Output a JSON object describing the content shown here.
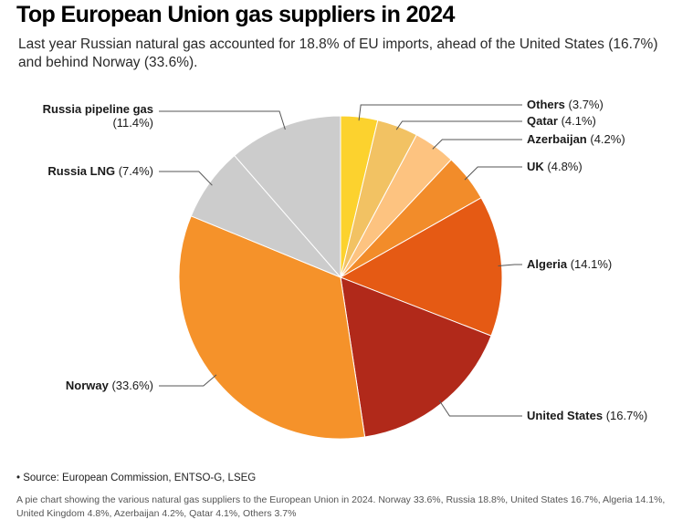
{
  "header": {
    "title": "Top European Union gas suppliers in 2024",
    "subtitle": "Last year Russian natural gas accounted for 18.8% of EU imports, ahead of the United States (16.7%) and behind Norway (33.6%)."
  },
  "footer": {
    "source": "• Source: European Commission, ENTSO-G, LSEG",
    "description": "A pie chart showing the various natural gas suppliers to the European Union in 2024. Norway 33.6%, Russia 18.8%, United States 16.7%, Algeria 14.1%, United Kingdom 4.8%, Azerbaijan 4.2%, Qatar 4.1%, Others 3.7%"
  },
  "chart_data": {
    "type": "pie",
    "start_angle": "12 o'clock",
    "direction": "clockwise",
    "slices": [
      {
        "name": "Others",
        "value": 3.7,
        "label": "(3.7%)",
        "color": "#fcd22e",
        "label_side": "right"
      },
      {
        "name": "Qatar",
        "value": 4.1,
        "label": "(4.1%)",
        "color": "#f2c263",
        "label_side": "right"
      },
      {
        "name": "Azerbaijan",
        "value": 4.2,
        "label": "(4.2%)",
        "color": "#fdc380",
        "label_side": "right"
      },
      {
        "name": "UK",
        "value": 4.8,
        "label": "(4.8%)",
        "color": "#f28c2a",
        "label_side": "right"
      },
      {
        "name": "Algeria",
        "value": 14.1,
        "label": "(14.1%)",
        "color": "#e55a14",
        "label_side": "right"
      },
      {
        "name": "United States",
        "value": 16.7,
        "label": "(16.7%)",
        "color": "#b1291a",
        "label_side": "right"
      },
      {
        "name": "Norway",
        "value": 33.6,
        "label": "(33.6%)",
        "color": "#f5922a",
        "label_side": "left"
      },
      {
        "name": "Russia LNG",
        "value": 7.4,
        "label": "(7.4%)",
        "color": "#cccccc",
        "label_side": "left"
      },
      {
        "name": "Russia pipeline gas",
        "value": 11.4,
        "label": "(11.4%)",
        "color": "#cccccc",
        "label_side": "left",
        "label_two_lines": true
      }
    ]
  }
}
